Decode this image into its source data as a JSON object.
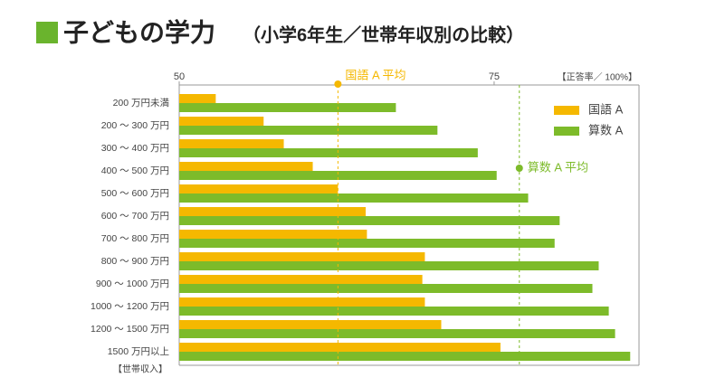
{
  "chart_data": {
    "type": "bar",
    "orientation": "horizontal",
    "title": "子どもの学力",
    "subtitle": "（小学6年生／世帯年収別の比較）",
    "x_axis_label": "【正答率／ 100%】",
    "y_axis_label": "【世帯収入】",
    "categories": [
      "200 万円未満",
      "200 ～ 300 万円",
      "300 ～ 400 万円",
      "400 ～ 500 万円",
      "500 ～ 600 万円",
      "600 ～ 700 万円",
      "700 ～ 800 万円",
      "800 ～ 900 万円",
      "900 ～ 1000 万円",
      "1000 ～ 1200 万円",
      "1200 ～ 1500 万円",
      "1500 万円以上"
    ],
    "series": [
      {
        "name": "国語 A",
        "color": "#f5b800",
        "values": [
          52.9,
          56.7,
          58.3,
          60.6,
          62.6,
          64.8,
          64.9,
          69.5,
          69.3,
          69.5,
          70.8,
          75.5
        ]
      },
      {
        "name": "算数 A",
        "color": "#7dbb2a",
        "values": [
          67.2,
          70.5,
          73.7,
          75.2,
          77.7,
          80.2,
          79.8,
          83.3,
          82.8,
          84.1,
          84.6,
          85.8
        ]
      }
    ],
    "reference_lines": [
      {
        "label": "国語 A 平均",
        "value": 62.6,
        "color": "#f5b800"
      },
      {
        "label": "算数 A 平均",
        "value": 77.0,
        "color": "#7dbb2a"
      }
    ],
    "xlim": [
      50,
      86.5
    ],
    "xticks": [
      50,
      75
    ],
    "legend": "upper right"
  }
}
